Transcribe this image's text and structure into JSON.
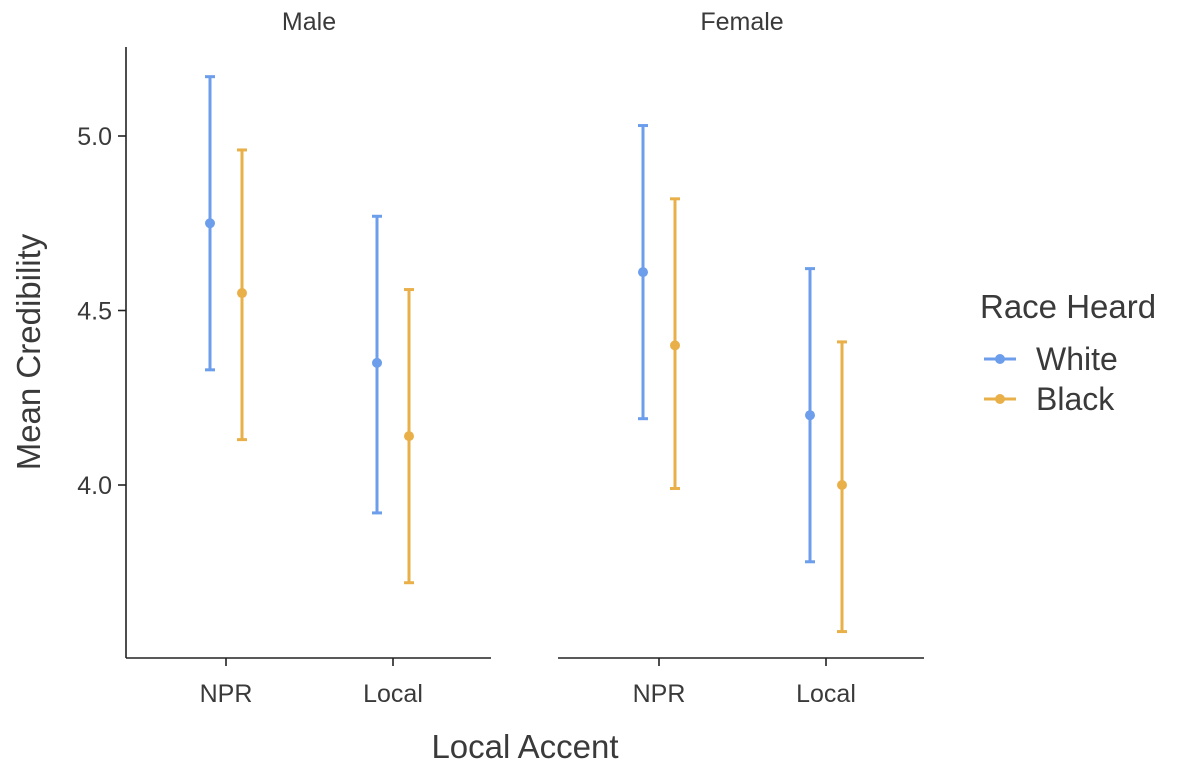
{
  "chart_data": {
    "type": "errorbar",
    "ylabel": "Mean Credibility",
    "xlabel": "Local Accent",
    "categories": [
      "NPR",
      "Local"
    ],
    "ylim": [
      3.52,
      5.25
    ],
    "yticks": [
      4.0,
      4.5,
      5.0
    ],
    "ytick_labels": [
      "4.0",
      "4.5",
      "5.0"
    ],
    "grid": false,
    "legend": {
      "title": "Race Heard",
      "position": "right",
      "entries": [
        {
          "name": "White",
          "color": "#6d9eeb"
        },
        {
          "name": "Black",
          "color": "#e9b04a"
        }
      ]
    },
    "panels": [
      {
        "title": "Male",
        "series": [
          {
            "name": "White",
            "color": "#6d9eeb",
            "points": [
              {
                "x": "NPR",
                "mean": 4.75,
                "low": 4.33,
                "high": 5.17
              },
              {
                "x": "Local",
                "mean": 4.35,
                "low": 3.92,
                "high": 4.77
              }
            ]
          },
          {
            "name": "Black",
            "color": "#e9b04a",
            "points": [
              {
                "x": "NPR",
                "mean": 4.55,
                "low": 4.13,
                "high": 4.96
              },
              {
                "x": "Local",
                "mean": 4.14,
                "low": 3.72,
                "high": 4.56
              }
            ]
          }
        ]
      },
      {
        "title": "Female",
        "series": [
          {
            "name": "White",
            "color": "#6d9eeb",
            "points": [
              {
                "x": "NPR",
                "mean": 4.61,
                "low": 4.19,
                "high": 5.03
              },
              {
                "x": "Local",
                "mean": 4.2,
                "low": 3.78,
                "high": 4.62
              }
            ]
          },
          {
            "name": "Black",
            "color": "#e9b04a",
            "points": [
              {
                "x": "NPR",
                "mean": 4.4,
                "low": 3.99,
                "high": 4.82
              },
              {
                "x": "Local",
                "mean": 4.0,
                "low": 3.58,
                "high": 4.41
              }
            ]
          }
        ]
      }
    ]
  }
}
